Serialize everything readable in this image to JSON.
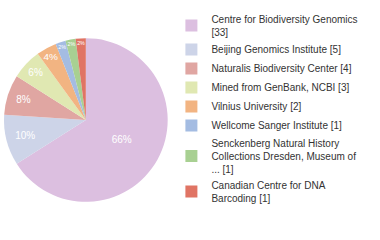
{
  "chart_data": {
    "type": "pie",
    "categories": [
      "Centre for Biodiversity Genomics [33]",
      "Beijing Genomics Institute [5]",
      "Naturalis Biodiversity Center [4]",
      "Mined from GenBank, NCBI [3]",
      "Vilnius University [2]",
      "Wellcome Sanger Institute [1]",
      "Senckenberg Natural History Collections Dresden, Museum of ... [1]",
      "Canadian Centre for DNA Barcoding [1]"
    ],
    "values": [
      66,
      10,
      8,
      6,
      4,
      2,
      2,
      2
    ],
    "value_labels": [
      "66%",
      "10%",
      "8%",
      "6%",
      "4%",
      "2%",
      "2%",
      "2%"
    ],
    "colors": [
      "#dcbfe0",
      "#cdd4e8",
      "#e0a6a2",
      "#e0e8b2",
      "#f2b482",
      "#a4bce2",
      "#a8d092",
      "#e07464"
    ],
    "data_labels": true,
    "legend": "right"
  }
}
